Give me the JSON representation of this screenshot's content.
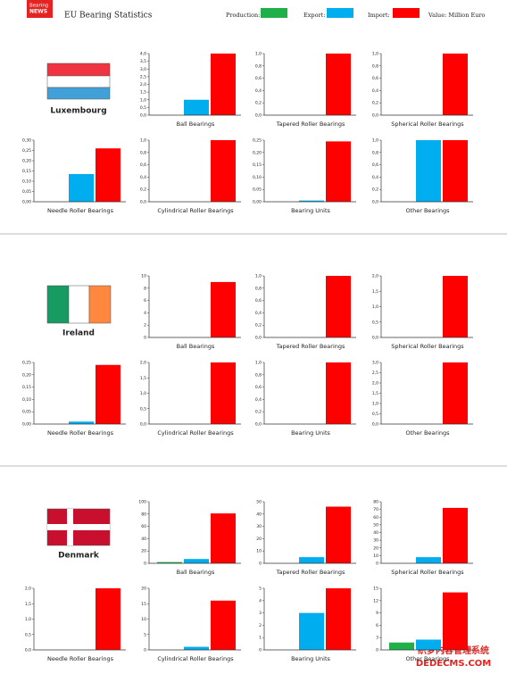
{
  "header": {
    "logo": [
      "Bearing",
      "NEWS"
    ],
    "title": "EU Bearing Statistics",
    "legend": [
      {
        "name": "Production:",
        "color": "#1fb04a"
      },
      {
        "name": "Export:",
        "color": "#00aeef"
      },
      {
        "name": "Import:",
        "color": "#ff0000"
      }
    ],
    "unit": "Value: Million Euro"
  },
  "countries": [
    "Luxembourg",
    "Ireland",
    "Denmark"
  ],
  "watermark": [
    "织梦内容管理系统",
    "DEDECMS.COM"
  ],
  "chart_data": [
    {
      "type": "bar",
      "title": "Ball Bearings",
      "values": [
        0,
        1.0,
        4.0
      ],
      "ylim": [
        0,
        4
      ],
      "yticks": [
        {
          "value": 0,
          "label": "0,0"
        },
        {
          "value": 0.5,
          "label": "0,5"
        },
        {
          "value": 1,
          "label": "1,0"
        },
        {
          "value": 1.5,
          "label": "1,5"
        },
        {
          "value": 2,
          "label": "2,0"
        },
        {
          "value": 2.5,
          "label": "2,5"
        },
        {
          "value": 3,
          "label": "3,0"
        },
        {
          "value": 3.5,
          "label": "3,5"
        },
        {
          "value": 4,
          "label": "4,0"
        }
      ]
    },
    {
      "type": "bar",
      "title": "Tapered Roller Bearings",
      "values": [
        0,
        0,
        1.0
      ],
      "ylim": [
        0,
        1
      ],
      "yticks": [
        {
          "value": 0,
          "label": "0,0"
        },
        {
          "value": 0.2,
          "label": "0,2"
        },
        {
          "value": 0.4,
          "label": "0,4"
        },
        {
          "value": 0.6,
          "label": "0,6"
        },
        {
          "value": 0.8,
          "label": "0,8"
        },
        {
          "value": 1,
          "label": "1,0"
        }
      ]
    },
    {
      "type": "bar",
      "title": "Spherical Roller Bearings",
      "values": [
        0,
        0,
        1.0
      ],
      "ylim": [
        0,
        1
      ],
      "yticks": [
        {
          "value": 0,
          "label": "0,0"
        },
        {
          "value": 0.2,
          "label": "0,2"
        },
        {
          "value": 0.4,
          "label": "0,4"
        },
        {
          "value": 0.6,
          "label": "0,6"
        },
        {
          "value": 0.8,
          "label": "0,8"
        },
        {
          "value": 1,
          "label": "1,0"
        }
      ]
    },
    {
      "type": "bar",
      "title": "Needle Roller Bearings",
      "values": [
        0,
        0.135,
        0.26
      ],
      "ylim": [
        0,
        0.3
      ],
      "yticks": [
        {
          "value": 0,
          "label": "0,00"
        },
        {
          "value": 0.05,
          "label": "0,05"
        },
        {
          "value": 0.1,
          "label": "0,10"
        },
        {
          "value": 0.15,
          "label": "0,15"
        },
        {
          "value": 0.2,
          "label": "0,20"
        },
        {
          "value": 0.25,
          "label": "0,25"
        },
        {
          "value": 0.3,
          "label": "0,30"
        }
      ]
    },
    {
      "type": "bar",
      "title": "Cylindrical Roller Bearings",
      "values": [
        0,
        0,
        1.0
      ],
      "ylim": [
        0,
        1
      ],
      "yticks": [
        {
          "value": 0,
          "label": "0,0"
        },
        {
          "value": 0.2,
          "label": "0,2"
        },
        {
          "value": 0.4,
          "label": "0,4"
        },
        {
          "value": 0.6,
          "label": "0,6"
        },
        {
          "value": 0.8,
          "label": "0,8"
        },
        {
          "value": 1,
          "label": "1,0"
        }
      ]
    },
    {
      "type": "bar",
      "title": "Bearing Units",
      "values": [
        0,
        0.005,
        0.245
      ],
      "ylim": [
        0,
        0.25
      ],
      "yticks": [
        {
          "value": 0,
          "label": "0,00"
        },
        {
          "value": 0.05,
          "label": "0,05"
        },
        {
          "value": 0.1,
          "label": "0,10"
        },
        {
          "value": 0.15,
          "label": "0,15"
        },
        {
          "value": 0.2,
          "label": "0,20"
        },
        {
          "value": 0.25,
          "label": "0,25"
        }
      ]
    },
    {
      "type": "bar",
      "title": "Other Bearings",
      "values": [
        0,
        1.0,
        1.0
      ],
      "ylim": [
        0,
        1
      ],
      "yticks": [
        {
          "value": 0,
          "label": "0,0"
        },
        {
          "value": 0.2,
          "label": "0,2"
        },
        {
          "value": 0.4,
          "label": "0,4"
        },
        {
          "value": 0.6,
          "label": "0,6"
        },
        {
          "value": 0.8,
          "label": "0,8"
        },
        {
          "value": 1,
          "label": "1,0"
        }
      ]
    },
    {
      "type": "bar",
      "title": "Ball Bearings",
      "values": [
        0,
        0,
        9
      ],
      "ylim": [
        0,
        10
      ],
      "yticks": [
        0,
        2,
        4,
        6,
        8,
        10
      ]
    },
    {
      "type": "bar",
      "title": "Tapered Roller Bearings",
      "values": [
        0,
        0,
        1.0
      ],
      "ylim": [
        0,
        1
      ],
      "yticks": [
        {
          "value": 0,
          "label": "0,0"
        },
        {
          "value": 0.2,
          "label": "0,2"
        },
        {
          "value": 0.4,
          "label": "0,4"
        },
        {
          "value": 0.6,
          "label": "0,6"
        },
        {
          "value": 0.8,
          "label": "0,8"
        },
        {
          "value": 1,
          "label": "1,0"
        }
      ]
    },
    {
      "type": "bar",
      "title": "Spherical Roller Bearings",
      "values": [
        0,
        0,
        2.0
      ],
      "ylim": [
        0,
        2
      ],
      "yticks": [
        {
          "value": 0,
          "label": "0,0"
        },
        {
          "value": 0.5,
          "label": "0,5"
        },
        {
          "value": 1,
          "label": "1,0"
        },
        {
          "value": 1.5,
          "label": "1,5"
        },
        {
          "value": 2,
          "label": "2,0"
        }
      ]
    },
    {
      "type": "bar",
      "title": "Needle Roller Bearings",
      "values": [
        0,
        0.01,
        0.24
      ],
      "ylim": [
        0,
        0.25
      ],
      "yticks": [
        {
          "value": 0,
          "label": "0,00"
        },
        {
          "value": 0.05,
          "label": "0,05"
        },
        {
          "value": 0.1,
          "label": "0,10"
        },
        {
          "value": 0.15,
          "label": "0,15"
        },
        {
          "value": 0.2,
          "label": "0,20"
        },
        {
          "value": 0.25,
          "label": "0,25"
        }
      ]
    },
    {
      "type": "bar",
      "title": "Cylindrical Roller Bearings",
      "values": [
        0,
        0,
        2.0
      ],
      "ylim": [
        0,
        2
      ],
      "yticks": [
        {
          "value": 0,
          "label": "0,0"
        },
        {
          "value": 0.5,
          "label": "0,5"
        },
        {
          "value": 1,
          "label": "1,0"
        },
        {
          "value": 1.5,
          "label": "1,5"
        },
        {
          "value": 2,
          "label": "2,0"
        }
      ]
    },
    {
      "type": "bar",
      "title": "Bearing Units",
      "values": [
        0,
        0,
        1.0
      ],
      "ylim": [
        0,
        1
      ],
      "yticks": [
        {
          "value": 0,
          "label": "0,0"
        },
        {
          "value": 0.2,
          "label": "0,2"
        },
        {
          "value": 0.4,
          "label": "0,4"
        },
        {
          "value": 0.6,
          "label": "0,6"
        },
        {
          "value": 0.8,
          "label": "0,8"
        },
        {
          "value": 1,
          "label": "1,0"
        }
      ]
    },
    {
      "type": "bar",
      "title": "Other Bearings",
      "values": [
        0,
        0,
        3.0
      ],
      "ylim": [
        0,
        3
      ],
      "yticks": [
        {
          "value": 0,
          "label": "0,0"
        },
        {
          "value": 0.5,
          "label": "0,5"
        },
        {
          "value": 1,
          "label": "1,0"
        },
        {
          "value": 1.5,
          "label": "1,5"
        },
        {
          "value": 2,
          "label": "2,0"
        },
        {
          "value": 2.5,
          "label": "2,5"
        },
        {
          "value": 3,
          "label": "3,0"
        }
      ]
    },
    {
      "type": "bar",
      "title": "Ball Bearings",
      "values": [
        2,
        7,
        81
      ],
      "ylim": [
        0,
        100
      ],
      "yticks": [
        0,
        20,
        40,
        60,
        80,
        100
      ]
    },
    {
      "type": "bar",
      "title": "Tapered Roller Bearings",
      "values": [
        0,
        5,
        46
      ],
      "ylim": [
        0,
        50
      ],
      "yticks": [
        0,
        10,
        20,
        30,
        40,
        50
      ]
    },
    {
      "type": "bar",
      "title": "Spherical Roller Bearings",
      "values": [
        0,
        8,
        72
      ],
      "ylim": [
        0,
        80
      ],
      "yticks": [
        0,
        10,
        20,
        30,
        40,
        50,
        60,
        70,
        80
      ]
    },
    {
      "type": "bar",
      "title": "Needle Roller Bearings",
      "values": [
        0,
        0,
        2.0
      ],
      "ylim": [
        0,
        2
      ],
      "yticks": [
        {
          "value": 0,
          "label": "0,0"
        },
        {
          "value": 0.5,
          "label": "0,5"
        },
        {
          "value": 1,
          "label": "1,0"
        },
        {
          "value": 1.5,
          "label": "1,5"
        },
        {
          "value": 2,
          "label": "2,0"
        }
      ]
    },
    {
      "type": "bar",
      "title": "Cylindrical Roller Bearings",
      "values": [
        0,
        1,
        16
      ],
      "ylim": [
        0,
        20
      ],
      "yticks": [
        0,
        5,
        10,
        15,
        20
      ]
    },
    {
      "type": "bar",
      "title": "Bearing Units",
      "values": [
        0,
        3,
        5
      ],
      "ylim": [
        0,
        5
      ],
      "yticks": [
        0,
        1,
        2,
        3,
        4,
        5
      ]
    },
    {
      "type": "bar",
      "title": "Other Bearings",
      "values": [
        1.8,
        2.5,
        14
      ],
      "ylim": [
        0,
        15
      ],
      "yticks": [
        0,
        3,
        6,
        9,
        12,
        15
      ]
    }
  ]
}
